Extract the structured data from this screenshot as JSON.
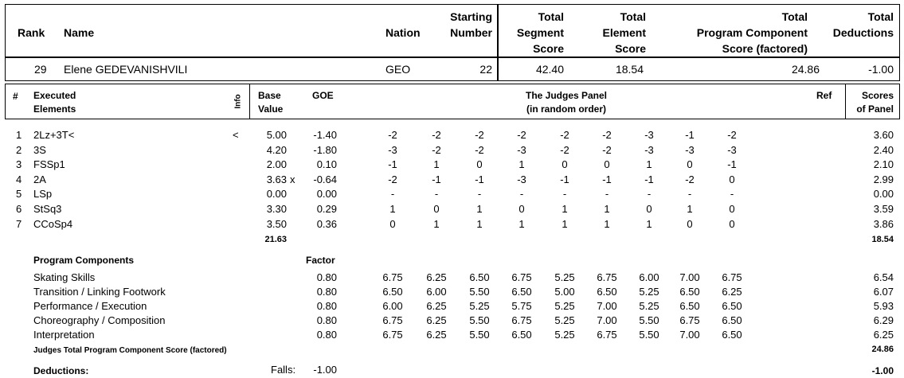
{
  "header": {
    "rank_label": "Rank",
    "name_label": "Name",
    "nation_label": "Nation",
    "starting_label": [
      "Starting",
      "Number"
    ],
    "tss_label": [
      "Total",
      "Segment",
      "Score"
    ],
    "tes_label": [
      "Total",
      "Element",
      "Score"
    ],
    "pcs_label": [
      "Total",
      "Program  Component",
      "Score (factored)"
    ],
    "ded_label": [
      "Total",
      "Deductions"
    ]
  },
  "skater": {
    "rank": "29",
    "name": "Elene GEDEVANISHVILI",
    "nation": "GEO",
    "starting_number": "22",
    "total_segment_score": "42.40",
    "total_element_score": "18.54",
    "total_pcs": "24.86",
    "total_deductions": "-1.00"
  },
  "elements_header": {
    "num": "#",
    "executed": [
      "Executed",
      "Elements"
    ],
    "info": "Info",
    "base": [
      "Base",
      "Value"
    ],
    "goe": "GOE",
    "judges": [
      "The Judges Panel",
      "(in random order)"
    ],
    "ref": "Ref",
    "scores": [
      "Scores",
      "of Panel"
    ]
  },
  "elements": [
    {
      "num": "1",
      "name": "2Lz+3T<",
      "info": "<",
      "base": "5.00",
      "x": "",
      "goe": "-1.40",
      "judges": [
        "-2",
        "-2",
        "-2",
        "-2",
        "-2",
        "-2",
        "-3",
        "-1",
        "-2"
      ],
      "score": "3.60"
    },
    {
      "num": "2",
      "name": "3S",
      "info": "",
      "base": "4.20",
      "x": "",
      "goe": "-1.80",
      "judges": [
        "-3",
        "-2",
        "-2",
        "-3",
        "-2",
        "-2",
        "-3",
        "-3",
        "-3"
      ],
      "score": "2.40"
    },
    {
      "num": "3",
      "name": "FSSp1",
      "info": "",
      "base": "2.00",
      "x": "",
      "goe": "0.10",
      "judges": [
        "-1",
        "1",
        "0",
        "1",
        "0",
        "0",
        "1",
        "0",
        "-1"
      ],
      "score": "2.10"
    },
    {
      "num": "4",
      "name": "2A",
      "info": "",
      "base": "3.63",
      "x": "x",
      "goe": "-0.64",
      "judges": [
        "-2",
        "-1",
        "-1",
        "-3",
        "-1",
        "-1",
        "-1",
        "-2",
        "0"
      ],
      "score": "2.99"
    },
    {
      "num": "5",
      "name": "LSp",
      "info": "",
      "base": "0.00",
      "x": "",
      "goe": "0.00",
      "judges": [
        "-",
        "-",
        "-",
        "-",
        "-",
        "-",
        "-",
        "-",
        "-"
      ],
      "score": "0.00"
    },
    {
      "num": "6",
      "name": "StSq3",
      "info": "",
      "base": "3.30",
      "x": "",
      "goe": "0.29",
      "judges": [
        "1",
        "0",
        "1",
        "0",
        "1",
        "1",
        "0",
        "1",
        "0"
      ],
      "score": "3.59"
    },
    {
      "num": "7",
      "name": "CCoSp4",
      "info": "",
      "base": "3.50",
      "x": "",
      "goe": "0.36",
      "judges": [
        "0",
        "1",
        "1",
        "1",
        "1",
        "1",
        "1",
        "0",
        "0"
      ],
      "score": "3.86"
    }
  ],
  "base_total": "21.63",
  "elements_total": "18.54",
  "pc_header": {
    "label": "Program Components",
    "factor": "Factor"
  },
  "components": [
    {
      "name": "Skating Skills",
      "factor": "0.80",
      "judges": [
        "6.75",
        "6.25",
        "6.50",
        "6.75",
        "5.25",
        "6.75",
        "6.00",
        "7.00",
        "6.75"
      ],
      "score": "6.54"
    },
    {
      "name": "Transition / Linking Footwork",
      "factor": "0.80",
      "judges": [
        "6.50",
        "6.00",
        "5.50",
        "6.50",
        "5.00",
        "6.50",
        "5.25",
        "6.50",
        "6.25"
      ],
      "score": "6.07"
    },
    {
      "name": "Performance / Execution",
      "factor": "0.80",
      "judges": [
        "6.00",
        "6.25",
        "5.25",
        "5.75",
        "5.25",
        "7.00",
        "5.25",
        "6.50",
        "6.50"
      ],
      "score": "5.93"
    },
    {
      "name": "Choreography / Composition",
      "factor": "0.80",
      "judges": [
        "6.75",
        "6.25",
        "5.50",
        "6.75",
        "5.25",
        "7.00",
        "5.50",
        "6.75",
        "6.50"
      ],
      "score": "6.29"
    },
    {
      "name": "Interpretation",
      "factor": "0.80",
      "judges": [
        "6.75",
        "6.25",
        "5.50",
        "6.50",
        "5.25",
        "6.75",
        "5.50",
        "7.00",
        "6.50"
      ],
      "score": "6.25"
    }
  ],
  "pcs_total_label": "Judges Total Program Component Score (factored)",
  "pcs_total": "24.86",
  "deductions": {
    "label": "Deductions:",
    "falls_label": "Falls:",
    "falls_value": "-1.00",
    "total": "-1.00"
  }
}
